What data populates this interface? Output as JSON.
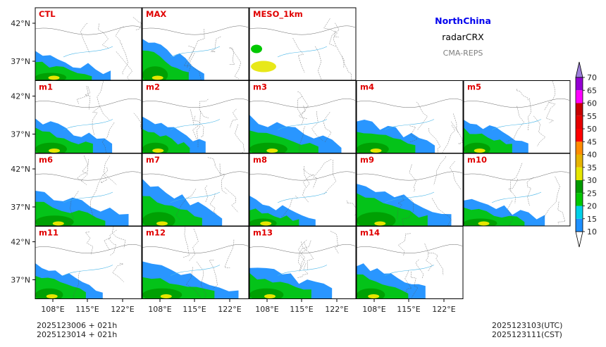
{
  "header": {
    "region": "NorthChina",
    "variable": "radarCRX",
    "model": "CMA-REPS",
    "region_color": "#0000ee",
    "model_color": "#808080"
  },
  "footer": {
    "init_line1": "2025123006  +  021h",
    "init_line2": "2025123014  +  021h",
    "valid_utc": "2025123103(UTC)",
    "valid_cst": "2025123111(CST)"
  },
  "chart_data": {
    "type": "heatmap",
    "description_note": "Small-multiple maps of composite radar reflectivity (dBZ) for ensemble members",
    "panels": [
      {
        "name": "CTL",
        "row": 0,
        "col": 0,
        "coverage": "light"
      },
      {
        "name": "MAX",
        "row": 0,
        "col": 1,
        "coverage": "heavy"
      },
      {
        "name": "MESO_1km",
        "row": 0,
        "col": 2,
        "coverage": "patchy"
      },
      {
        "name": "m1",
        "row": 1,
        "col": 0,
        "coverage": "moderate"
      },
      {
        "name": "m2",
        "row": 1,
        "col": 1,
        "coverage": "moderate"
      },
      {
        "name": "m3",
        "row": 1,
        "col": 2,
        "coverage": "moderate"
      },
      {
        "name": "m4",
        "row": 1,
        "col": 3,
        "coverage": "moderate"
      },
      {
        "name": "m5",
        "row": 1,
        "col": 4,
        "coverage": "moderate"
      },
      {
        "name": "m6",
        "row": 2,
        "col": 0,
        "coverage": "moderate"
      },
      {
        "name": "m7",
        "row": 2,
        "col": 1,
        "coverage": "heavy"
      },
      {
        "name": "m8",
        "row": 2,
        "col": 2,
        "coverage": "light"
      },
      {
        "name": "m9",
        "row": 2,
        "col": 3,
        "coverage": "heavy"
      },
      {
        "name": "m10",
        "row": 2,
        "col": 4,
        "coverage": "light"
      },
      {
        "name": "m11",
        "row": 3,
        "col": 0,
        "coverage": "moderate"
      },
      {
        "name": "m12",
        "row": 3,
        "col": 1,
        "coverage": "moderate"
      },
      {
        "name": "m13",
        "row": 3,
        "col": 2,
        "coverage": "moderate"
      },
      {
        "name": "m14",
        "row": 3,
        "col": 3,
        "coverage": "moderate"
      }
    ],
    "x_ticks": [
      "108°E",
      "115°E",
      "122°E"
    ],
    "y_ticks": [
      "42°N",
      "37°N"
    ],
    "colorbar": {
      "levels": [
        10,
        15,
        20,
        25,
        30,
        35,
        40,
        45,
        50,
        55,
        60,
        65,
        70
      ],
      "colors": [
        "#1e90ff",
        "#00d0e8",
        "#00c800",
        "#009a00",
        "#e6e600",
        "#e6b400",
        "#ff8c00",
        "#ff0000",
        "#e60000",
        "#c80000",
        "#ff00ff",
        "#9400d3"
      ],
      "extend_min_color": "#ffffff",
      "extend_max_color": "#9b7fd9"
    }
  }
}
